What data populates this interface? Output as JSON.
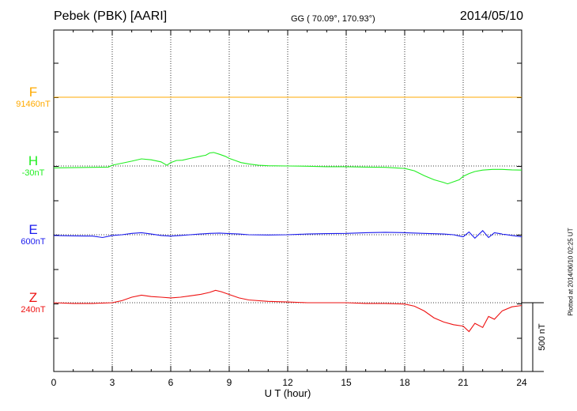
{
  "header": {
    "title": "Pebek (PBK)  [AARI]",
    "coords": "GG ( 70.09°, 170.93°)",
    "date": "2014/05/10",
    "plotted": "Plotted at 2014/06/10 02:25 UT"
  },
  "chart_data": {
    "type": "line",
    "xlabel": "U T (hour)",
    "xlim": [
      0,
      24
    ],
    "xticks": [
      0,
      3,
      6,
      9,
      12,
      15,
      18,
      21,
      24
    ],
    "xtick_labels": [
      "0",
      "3",
      "6",
      "9",
      "12",
      "15",
      "18",
      "21",
      "24"
    ],
    "grid": true,
    "scale_bar": {
      "label": "500 nT",
      "value": 500
    },
    "series": [
      {
        "name": "F",
        "baseline_label": "91460nT",
        "color": "#ffaa00",
        "x": [
          0,
          3,
          6,
          9,
          12,
          15,
          18,
          21,
          24
        ],
        "y": [
          0,
          0,
          0,
          0,
          0,
          0,
          0,
          0,
          0
        ]
      },
      {
        "name": "H",
        "baseline_label": "-30nT",
        "color": "#22ee22",
        "x": [
          0,
          1,
          2,
          2.8,
          3,
          3.5,
          4,
          4.5,
          5,
          5.5,
          5.8,
          6,
          6.3,
          6.6,
          7,
          7.5,
          7.8,
          8,
          8.2,
          8.5,
          8.8,
          9,
          9.3,
          9.6,
          10,
          10.5,
          11,
          12,
          13,
          14,
          15,
          16,
          17,
          18,
          18.5,
          19,
          19.5,
          20,
          20.2,
          20.5,
          20.8,
          21,
          21.3,
          21.6,
          22,
          22.5,
          23,
          23.5,
          24
        ],
        "y": [
          -14,
          -12,
          -10,
          -8,
          6,
          20,
          35,
          52,
          45,
          30,
          5,
          25,
          40,
          42,
          55,
          70,
          78,
          95,
          98,
          85,
          70,
          55,
          40,
          25,
          15,
          5,
          2,
          0,
          -2,
          -5,
          -5,
          -8,
          -10,
          -18,
          -35,
          -70,
          -100,
          -120,
          -130,
          -115,
          -100,
          -75,
          -55,
          -40,
          -30,
          -25,
          -25,
          -28,
          -30
        ]
      },
      {
        "name": "E",
        "baseline_label": "600nT",
        "color": "#1a1aee",
        "x": [
          0,
          1,
          2,
          2.5,
          3,
          3.5,
          4,
          4.5,
          5,
          5.5,
          6,
          6.5,
          7,
          7.5,
          8,
          8.5,
          9,
          9.5,
          10,
          11,
          12,
          13,
          14,
          15,
          16,
          17,
          18,
          19,
          20,
          20.5,
          21,
          21.3,
          21.6,
          22,
          22.3,
          22.6,
          23,
          23.5,
          24
        ],
        "y": [
          -5,
          -8,
          -10,
          -20,
          -5,
          0,
          10,
          15,
          5,
          -5,
          -10,
          -5,
          0,
          5,
          10,
          12,
          8,
          5,
          0,
          -2,
          0,
          5,
          8,
          10,
          15,
          18,
          15,
          10,
          5,
          0,
          -15,
          20,
          -25,
          30,
          -20,
          15,
          5,
          -5,
          -15
        ]
      },
      {
        "name": "Z",
        "baseline_label": "240nT",
        "color": "#ee1111",
        "x": [
          0,
          1,
          2,
          3,
          3.5,
          4,
          4.5,
          5,
          5.5,
          6,
          6.5,
          7,
          7.5,
          8,
          8.3,
          8.6,
          9,
          9.5,
          10,
          11,
          12,
          13,
          14,
          15,
          16,
          17,
          18,
          18.5,
          19,
          19.5,
          20,
          20.5,
          21,
          21.3,
          21.6,
          22,
          22.3,
          22.6,
          23,
          23.5,
          24
        ],
        "y": [
          0,
          -5,
          -5,
          0,
          15,
          40,
          55,
          45,
          40,
          35,
          40,
          50,
          60,
          75,
          90,
          80,
          60,
          35,
          20,
          10,
          5,
          0,
          0,
          0,
          -5,
          -5,
          -10,
          -25,
          -60,
          -110,
          -140,
          -160,
          -170,
          -210,
          -150,
          -180,
          -100,
          -120,
          -60,
          -30,
          -20
        ]
      }
    ]
  }
}
